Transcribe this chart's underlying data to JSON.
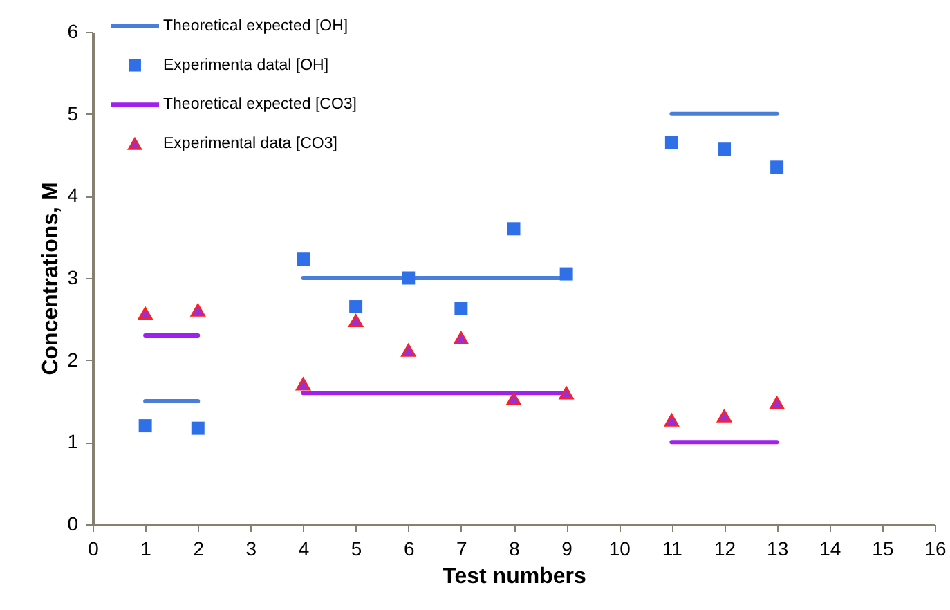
{
  "chart_data": {
    "type": "scatter",
    "xlabel": "Test numbers",
    "ylabel": "Concentrations, M",
    "xlim": [
      0,
      16
    ],
    "xticks": [
      0,
      1,
      2,
      3,
      4,
      5,
      6,
      7,
      8,
      9,
      10,
      11,
      12,
      13,
      14,
      15,
      16
    ],
    "ylim": [
      0,
      6
    ],
    "yticks": [
      0,
      1,
      2,
      3,
      4,
      5,
      6
    ],
    "grid": false,
    "legend": "top left",
    "series": [
      {
        "name": "Theoretical expected [OH]",
        "type": "line",
        "marker": "none",
        "color": "#4a7fd9",
        "x": [
          1,
          2,
          3,
          4,
          5,
          6,
          7,
          8,
          9,
          10,
          11,
          12,
          13
        ],
        "values": [
          1.5,
          1.5,
          null,
          3,
          3,
          3,
          3,
          3,
          3,
          null,
          5,
          5,
          5
        ]
      },
      {
        "name": "Experimenta datal [OH]",
        "type": "scatter",
        "marker": "square",
        "color": "#2f6fe8",
        "x": [
          1,
          2,
          4,
          5,
          6,
          7,
          8,
          9,
          11,
          12,
          13
        ],
        "values": [
          1.2,
          1.17,
          3.23,
          2.65,
          3.0,
          2.63,
          3.6,
          3.05,
          4.65,
          4.57,
          4.35
        ]
      },
      {
        "name": "Theoretical expected [CO3]",
        "type": "line",
        "marker": "none",
        "color": "#a020f0",
        "x": [
          1,
          2,
          3,
          4,
          5,
          6,
          7,
          8,
          9,
          10,
          11,
          12,
          13
        ],
        "values": [
          2.3,
          2.3,
          null,
          1.6,
          1.6,
          1.6,
          1.6,
          1.6,
          1.6,
          null,
          1.0,
          1.0,
          1.0
        ]
      },
      {
        "name": "Experimental data [CO3]",
        "type": "scatter",
        "marker": "triangle",
        "color": "#9b30d0",
        "x": [
          1,
          2,
          4,
          5,
          6,
          7,
          8,
          9,
          11,
          12,
          13
        ],
        "values": [
          2.57,
          2.61,
          1.71,
          2.48,
          2.12,
          2.27,
          1.53,
          1.6,
          1.27,
          1.32,
          1.48
        ]
      }
    ]
  }
}
